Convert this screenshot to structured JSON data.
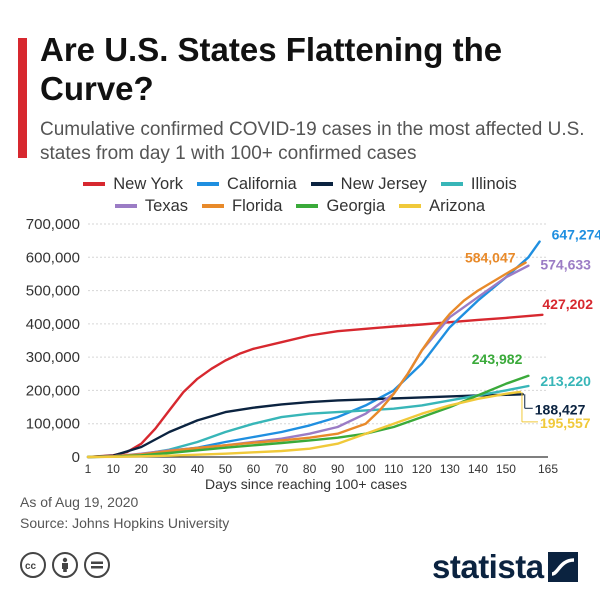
{
  "header": {
    "title": "Are U.S. States Flattening the Curve?",
    "subtitle": "Cumulative confirmed COVID-19 cases in the most affected U.S. states from day 1 with 100+ confirmed cases"
  },
  "colors": {
    "accent": "#d7282f",
    "brand": "#0b2340"
  },
  "footer": {
    "as_of": "As of Aug 19, 2020",
    "source": "Source: Johns Hopkins University",
    "brand": "statista"
  },
  "icons": [
    "cc-icon",
    "by-person-icon",
    "nd-equals-icon",
    "statista-logo-icon"
  ],
  "chart_data": {
    "type": "line",
    "xlabel": "Days since reaching 100+ cases",
    "ylabel": "",
    "xlim": [
      1,
      165
    ],
    "ylim": [
      0,
      700000
    ],
    "x_ticks": [
      1,
      10,
      20,
      30,
      40,
      50,
      60,
      70,
      80,
      90,
      100,
      110,
      120,
      130,
      140,
      150,
      165
    ],
    "y_ticks": [
      0,
      100000,
      200000,
      300000,
      400000,
      500000,
      600000,
      700000
    ],
    "y_tick_labels": [
      "0",
      "100,000",
      "200,000",
      "300,000",
      "400,000",
      "500,000",
      "600,000",
      "700,000"
    ],
    "grid": "horizontal",
    "legend_position": "top",
    "series": [
      {
        "name": "New York",
        "color": "#d7282f",
        "end_label": "427,202",
        "x": [
          1,
          10,
          15,
          20,
          25,
          30,
          35,
          40,
          45,
          50,
          55,
          60,
          70,
          80,
          90,
          100,
          110,
          120,
          130,
          140,
          150,
          163
        ],
        "y": [
          100,
          5000,
          15000,
          40000,
          85000,
          140000,
          195000,
          235000,
          265000,
          290000,
          310000,
          325000,
          345000,
          365000,
          378000,
          385000,
          392000,
          398000,
          405000,
          412000,
          418000,
          427202
        ]
      },
      {
        "name": "California",
        "color": "#1f8fe0",
        "end_label": "647,274",
        "x": [
          1,
          10,
          20,
          30,
          40,
          50,
          60,
          70,
          80,
          90,
          100,
          110,
          120,
          130,
          140,
          150,
          158,
          162
        ],
        "y": [
          100,
          1500,
          8000,
          18000,
          28000,
          45000,
          60000,
          75000,
          95000,
          120000,
          155000,
          200000,
          280000,
          390000,
          470000,
          540000,
          600000,
          647274
        ]
      },
      {
        "name": "New Jersey",
        "color": "#0b2340",
        "end_label": "188,427",
        "x": [
          1,
          10,
          20,
          30,
          40,
          50,
          60,
          70,
          80,
          90,
          100,
          110,
          120,
          130,
          140,
          150,
          156
        ],
        "y": [
          100,
          4000,
          30000,
          75000,
          110000,
          135000,
          148000,
          158000,
          165000,
          170000,
          173000,
          176000,
          179000,
          182000,
          185000,
          187000,
          188427
        ]
      },
      {
        "name": "Illinois",
        "color": "#38b6b8",
        "end_label": "213,220",
        "x": [
          1,
          10,
          20,
          30,
          40,
          50,
          60,
          70,
          80,
          90,
          100,
          110,
          120,
          130,
          140,
          150,
          158
        ],
        "y": [
          100,
          2000,
          8000,
          22000,
          45000,
          75000,
          100000,
          120000,
          130000,
          135000,
          140000,
          145000,
          155000,
          170000,
          185000,
          200000,
          213220
        ]
      },
      {
        "name": "Texas",
        "color": "#9b7cc5",
        "end_label": "574,633",
        "x": [
          1,
          10,
          20,
          30,
          40,
          50,
          60,
          70,
          80,
          90,
          100,
          110,
          115,
          120,
          125,
          130,
          140,
          150,
          158
        ],
        "y": [
          100,
          2000,
          10000,
          20000,
          27000,
          35000,
          45000,
          55000,
          70000,
          90000,
          130000,
          190000,
          250000,
          320000,
          370000,
          420000,
          480000,
          540000,
          574633
        ]
      },
      {
        "name": "Florida",
        "color": "#e88a2a",
        "end_label": "584,047",
        "x": [
          1,
          10,
          20,
          30,
          40,
          50,
          60,
          70,
          80,
          90,
          100,
          105,
          110,
          115,
          120,
          125,
          130,
          135,
          140,
          150,
          157
        ],
        "y": [
          100,
          2000,
          8000,
          18000,
          27000,
          35000,
          43000,
          50000,
          58000,
          70000,
          100000,
          140000,
          190000,
          250000,
          320000,
          380000,
          430000,
          470000,
          500000,
          550000,
          584047
        ]
      },
      {
        "name": "Georgia",
        "color": "#3aaa3a",
        "end_label": "243,982",
        "x": [
          1,
          10,
          20,
          30,
          40,
          50,
          60,
          70,
          80,
          90,
          100,
          110,
          120,
          130,
          140,
          150,
          158
        ],
        "y": [
          100,
          1000,
          5000,
          12000,
          20000,
          28000,
          35000,
          42000,
          50000,
          58000,
          70000,
          90000,
          120000,
          150000,
          185000,
          220000,
          243982
        ]
      },
      {
        "name": "Arizona",
        "color": "#f0c93a",
        "end_label": "195,557",
        "x": [
          1,
          10,
          20,
          30,
          40,
          50,
          60,
          70,
          80,
          90,
          100,
          110,
          120,
          130,
          140,
          150,
          155
        ],
        "y": [
          100,
          500,
          2000,
          4000,
          7000,
          10000,
          14000,
          18000,
          25000,
          40000,
          70000,
          100000,
          130000,
          155000,
          175000,
          190000,
          195557
        ]
      }
    ]
  }
}
